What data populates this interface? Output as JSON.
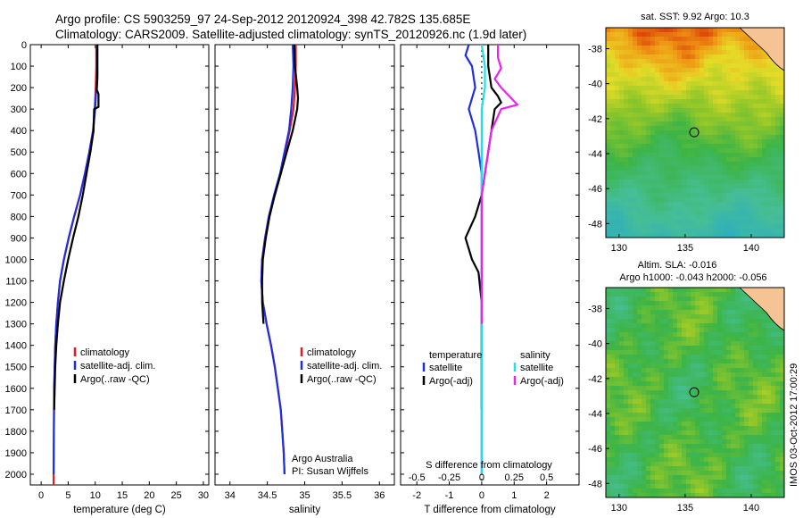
{
  "header": {
    "line1": "Argo profile: CS 5903259_97 24-Sep-2012 20120924_398 42.782S 135.685E",
    "line2": "Climatology: CARS2009. Satellite-adjusted climatology: synTS_20120926.nc (1.9d later)"
  },
  "side_text": "IMOS 03-Oct-2012 17:00:29",
  "credit": {
    "line1": "Argo Australia",
    "line2": "PI: Susan Wijffels"
  },
  "colors": {
    "climatology": "#e41a1c",
    "satellite": "#1f2fe0",
    "argo": "#000000",
    "sal_satellite": "#22e0e0",
    "sal_argo": "#ee22ee"
  },
  "chart_data": [
    {
      "type": "line",
      "id": "temperature",
      "xlabel": "temperature (deg C)",
      "xlim": [
        -2,
        31
      ],
      "xticks": [
        0,
        5,
        10,
        15,
        20,
        25,
        30
      ],
      "ylim": [
        0,
        2050
      ],
      "yticks": [
        0,
        100,
        200,
        300,
        400,
        500,
        600,
        700,
        800,
        900,
        1000,
        1100,
        1200,
        1300,
        1400,
        1500,
        1600,
        1700,
        1800,
        1900,
        2000
      ],
      "legend": [
        "climatology",
        "satellite-adj. clim.",
        "Argo(..raw -QC)"
      ],
      "series": [
        {
          "name": "climatology",
          "color": "#e41a1c",
          "x": [
            10.2,
            10.2,
            10.1,
            9.9,
            9.6,
            8.9,
            8.1,
            7.2,
            6.1,
            5.1,
            4.2,
            3.5,
            3.1,
            2.8,
            2.6,
            2.5,
            2.4,
            2.35,
            2.3,
            2.3
          ],
          "y": [
            0,
            100,
            200,
            300,
            400,
            500,
            600,
            700,
            800,
            900,
            1000,
            1100,
            1200,
            1300,
            1400,
            1500,
            1600,
            1800,
            2000,
            2050
          ]
        },
        {
          "name": "satellite-adj. clim.",
          "color": "#1f2fe0",
          "x": [
            10.3,
            10.3,
            10.2,
            10.0,
            9.6,
            8.9,
            8.1,
            7.2,
            6.1,
            5.1,
            4.2,
            3.5,
            3.1,
            2.8,
            2.6,
            2.5,
            2.4,
            2.35,
            2.3
          ],
          "y": [
            0,
            100,
            200,
            300,
            400,
            500,
            600,
            700,
            800,
            900,
            1000,
            1100,
            1200,
            1300,
            1400,
            1500,
            1600,
            1800,
            2000
          ]
        },
        {
          "name": "Argo(..raw -QC)",
          "color": "#000000",
          "x": [
            10.4,
            10.4,
            10.3,
            10.6,
            10.6,
            9.8,
            9.7,
            9.1,
            8.4,
            7.7,
            6.9,
            5.9,
            5.0,
            4.2,
            3.5,
            3.1,
            2.8,
            2.6,
            2.5,
            2.4
          ],
          "y": [
            0,
            150,
            210,
            230,
            290,
            300,
            400,
            500,
            600,
            700,
            800,
            900,
            1000,
            1100,
            1200,
            1300,
            1400,
            1500,
            1600,
            1700
          ]
        }
      ]
    },
    {
      "type": "line",
      "id": "salinity",
      "xlabel": "salinity",
      "xlim": [
        33.8,
        36.2
      ],
      "xticks": [
        34,
        34.5,
        35,
        35.5,
        36
      ],
      "ylim": [
        0,
        2050
      ],
      "legend": [
        "climatology",
        "satellite-adj. clim.",
        "Argo(..raw -QC)"
      ],
      "series": [
        {
          "name": "climatology",
          "color": "#e41a1c",
          "x": [
            34.88,
            34.88,
            34.87,
            34.85,
            34.8,
            34.74,
            34.68,
            34.6,
            34.52,
            34.47,
            34.43,
            34.42,
            34.44,
            34.49,
            34.55,
            34.6,
            34.64,
            34.68,
            34.7,
            34.72,
            34.73
          ],
          "y": [
            0,
            100,
            200,
            300,
            400,
            500,
            600,
            700,
            800,
            900,
            1000,
            1100,
            1200,
            1300,
            1400,
            1500,
            1600,
            1700,
            1800,
            1900,
            2000
          ]
        },
        {
          "name": "satellite-adj. clim.",
          "color": "#1f2fe0",
          "x": [
            34.84,
            34.85,
            34.84,
            34.82,
            34.79,
            34.73,
            34.67,
            34.59,
            34.52,
            34.47,
            34.43,
            34.42,
            34.44,
            34.49,
            34.55,
            34.6,
            34.64,
            34.68,
            34.7,
            34.72,
            34.73
          ],
          "y": [
            0,
            100,
            200,
            300,
            400,
            500,
            600,
            700,
            800,
            900,
            1000,
            1100,
            1200,
            1300,
            1400,
            1500,
            1600,
            1700,
            1800,
            1900,
            2000
          ]
        },
        {
          "name": "Argo(..raw -QC)",
          "color": "#000000",
          "x": [
            34.86,
            34.87,
            34.9,
            34.91,
            34.9,
            34.84,
            34.76,
            34.68,
            34.6,
            34.53,
            34.48,
            34.44,
            34.43,
            34.43,
            34.45
          ],
          "y": [
            0,
            100,
            200,
            250,
            300,
            400,
            500,
            600,
            700,
            800,
            900,
            1000,
            1100,
            1200,
            1300
          ]
        }
      ]
    },
    {
      "type": "line",
      "id": "differences",
      "xlabel": "T difference from climatology",
      "xlabel_top": "S difference from climatology",
      "xlim": [
        -2.5,
        3
      ],
      "xticks": [
        -2,
        -1,
        0,
        1,
        2
      ],
      "xticks_top": [
        "-0.5",
        "-0.25",
        "0",
        "0.25",
        "0.5"
      ],
      "xticks_top_pos": [
        -2,
        -1,
        0,
        1,
        2
      ],
      "ylim": [
        0,
        2050
      ],
      "legend_groups": [
        "temperature",
        "salinity"
      ],
      "legend": [
        "satellite",
        "Argo(-adj)",
        "satellite",
        "Argo(-adj)"
      ],
      "series": [
        {
          "name": "satellite",
          "group": "temperature",
          "color": "#1f2fe0",
          "x": [
            -0.4,
            -0.5,
            -0.3,
            -0.2,
            -0.3,
            -0.4,
            -0.2,
            -0.1,
            0,
            0,
            0,
            0,
            0,
            0,
            0
          ],
          "y": [
            0,
            50,
            100,
            200,
            250,
            300,
            400,
            500,
            600,
            700,
            800,
            1000,
            1200,
            1600,
            2000
          ]
        },
        {
          "name": "Argo(-adj)",
          "group": "temperature",
          "color": "#000000",
          "x": [
            0.2,
            0.2,
            0.3,
            0.5,
            0.6,
            0.4,
            0.3,
            0.2,
            0.1,
            0,
            -0.2,
            -0.5,
            -0.3,
            -0.1,
            0,
            0,
            0
          ],
          "y": [
            0,
            100,
            200,
            240,
            270,
            300,
            400,
            500,
            600,
            700,
            800,
            900,
            1000,
            1060,
            1200,
            1500,
            1700
          ]
        },
        {
          "name": "satellite",
          "group": "salinity",
          "color": "#22e0e0",
          "x": [
            0,
            0.1,
            0.1,
            0,
            0,
            0,
            0,
            0,
            0,
            0,
            0,
            0,
            0,
            0,
            0
          ],
          "y": [
            0,
            100,
            200,
            300,
            400,
            500,
            600,
            700,
            800,
            1000,
            1200,
            1400,
            1600,
            1800,
            2000
          ]
        },
        {
          "name": "Argo(-adj)",
          "group": "salinity",
          "color": "#ee22ee",
          "x": [
            0.5,
            0.5,
            0.6,
            0.4,
            0.6,
            1.1,
            0.6,
            0.3,
            0.2,
            0,
            0,
            0,
            0
          ],
          "y": [
            0,
            60,
            110,
            160,
            200,
            280,
            300,
            400,
            500,
            700,
            900,
            1100,
            1300
          ]
        }
      ]
    },
    {
      "type": "heatmap",
      "id": "sst-map",
      "title": "sat. SST: 9.92 Argo: 10.3",
      "xticks": [
        130,
        135,
        140
      ],
      "yticks": [
        -38,
        -40,
        -42,
        -44,
        -46,
        -48
      ],
      "xlim": [
        129,
        142.5
      ],
      "ylim": [
        -48.8,
        -36.8
      ],
      "marker": {
        "lon": 135.685,
        "lat": -42.782
      }
    },
    {
      "type": "heatmap",
      "id": "sla-map",
      "title": "Altim. SLA: -0.016",
      "subtitle": "Argo h1000: -0.043 h2000: -0.056",
      "xticks": [
        130,
        135,
        140
      ],
      "yticks": [
        -38,
        -40,
        -42,
        -44,
        -46,
        -48
      ],
      "xlim": [
        129,
        142.5
      ],
      "ylim": [
        -48.8,
        -36.8
      ],
      "marker": {
        "lon": 135.685,
        "lat": -42.782
      }
    }
  ]
}
